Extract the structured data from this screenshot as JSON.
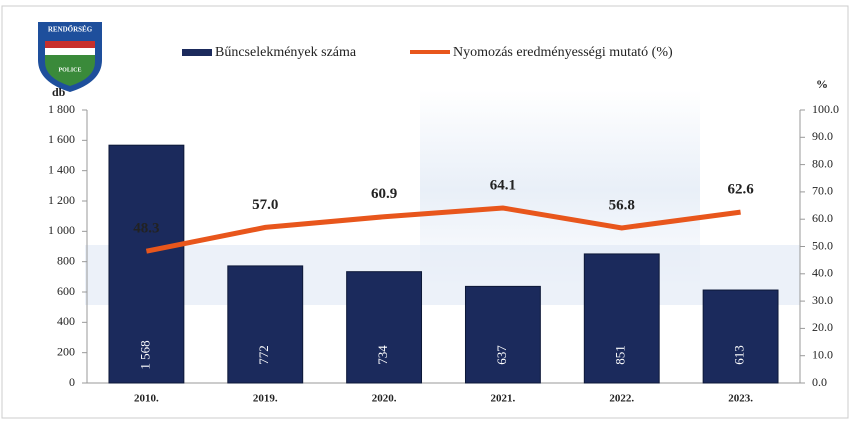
{
  "chart_data": {
    "type": "bar-line",
    "logo": {
      "top": "RENDŐRSÉG",
      "bottom": "POLICE"
    },
    "y_label": "db",
    "y2_label": "%",
    "categories": [
      "2010.",
      "2019.",
      "2020.",
      "2021.",
      "2022.",
      "2023."
    ],
    "series": [
      {
        "name": "Bűncselekmények száma",
        "type": "bar",
        "color": "#1b2a5c",
        "axis": "y",
        "values": [
          1568,
          772,
          734,
          637,
          851,
          613
        ],
        "value_labels": [
          "1 568",
          "772",
          "734",
          "637",
          "851",
          "613"
        ]
      },
      {
        "name": "Nyomozás eredményességi mutató (%)",
        "type": "line",
        "color": "#e8561c",
        "axis": "y2",
        "values": [
          48.3,
          57.0,
          60.9,
          64.1,
          56.8,
          62.6
        ],
        "value_labels": [
          "48.3",
          "57.0",
          "60.9",
          "64.1",
          "56.8",
          "62.6"
        ]
      }
    ],
    "ylim": [
      0,
      1800
    ],
    "yticks": [
      0,
      200,
      400,
      600,
      800,
      {
        "value": 1000,
        "label": "1 000"
      },
      {
        "value": 1200,
        "label": "1 200"
      },
      {
        "value": 1400,
        "label": "1 400"
      },
      {
        "value": 1600,
        "label": "1 600"
      },
      {
        "value": 1800,
        "label": "1 800"
      }
    ],
    "y2lim": [
      0,
      100
    ],
    "y2ticks": [
      {
        "value": 0,
        "label": "0.0"
      },
      {
        "value": 10,
        "label": "10.0"
      },
      {
        "value": 20,
        "label": "20.0"
      },
      {
        "value": 30,
        "label": "30.0"
      },
      {
        "value": 40,
        "label": "40.0"
      },
      {
        "value": 50,
        "label": "50.0"
      },
      {
        "value": 60,
        "label": "60.0"
      },
      {
        "value": 70,
        "label": "70.0"
      },
      {
        "value": 80,
        "label": "80.0"
      },
      {
        "value": 90,
        "label": "90.0"
      },
      {
        "value": 100,
        "label": "100.0"
      }
    ],
    "legend": "top"
  }
}
